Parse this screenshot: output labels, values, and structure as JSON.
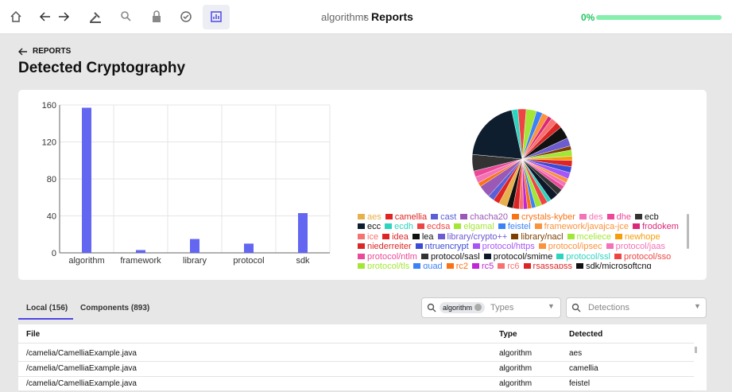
{
  "toolbar": {
    "breadcrumb": "algorithms",
    "current": "Reports",
    "progress": {
      "value": 0,
      "label": "0%"
    }
  },
  "header": {
    "back": "REPORTS",
    "title": "Detected Cryptography"
  },
  "chart_data": [
    {
      "type": "bar",
      "categories": [
        "algorithm",
        "framework",
        "library",
        "protocol",
        "sdk"
      ],
      "values": [
        157,
        3,
        15,
        10,
        43
      ],
      "color": "#6366f1",
      "ylim": [
        0,
        160
      ],
      "yticks": [
        0,
        40,
        80,
        120,
        160
      ],
      "grid": true
    },
    {
      "type": "pie",
      "categories": [
        "aes",
        "camellia",
        "cast",
        "chacha20",
        "crystals-kyber",
        "des",
        "dhe",
        "ecb",
        "ecc",
        "ecdh",
        "ecdsa",
        "elgamal",
        "feistel",
        "framework/javajca-jce",
        "frodokem",
        "ice",
        "idea",
        "lea",
        "library/crypto++",
        "library/nacl",
        "mceliece",
        "newhope",
        "niederreiter",
        "ntruencrypt",
        "protocol/https",
        "protocol/ipsec",
        "protocol/jaas",
        "protocol/ntlm",
        "protocol/sasl",
        "protocol/smime",
        "protocol/ssl",
        "protocol/sso",
        "protocol/tls",
        "quad",
        "rc2",
        "rc5",
        "rc6",
        "rsassapss",
        "sdk/microsoftcng"
      ],
      "values": [
        4,
        3,
        3,
        6,
        2,
        3,
        3,
        8,
        30,
        3,
        4,
        5,
        3,
        3,
        2,
        3,
        3,
        6,
        4,
        2,
        3,
        2,
        3,
        3,
        3,
        2,
        2,
        2,
        3,
        4,
        2,
        3,
        3,
        2,
        2,
        2,
        2,
        3,
        3
      ],
      "colors": [
        "#e8b04a",
        "#e02424",
        "#5a5fd6",
        "#9b59b6",
        "#f97316",
        "#f472b6",
        "#ec4899",
        "#333333",
        "#0f1e2e",
        "#2dd4bf",
        "#ef4444",
        "#a3e635",
        "#3b82f6",
        "#fb923c",
        "#db2777",
        "#f87171",
        "#dc2626",
        "#111111",
        "#6d5bd0",
        "#7c3f00",
        "#a3e635",
        "#f59e0b",
        "#dc2626",
        "#3b4bd6",
        "#a855f7",
        "#fb923c",
        "#f472b6",
        "#ec4899",
        "#333333",
        "#0f172a",
        "#2dd4bf",
        "#ef4444",
        "#a3e635",
        "#3b82f6",
        "#f97316",
        "#c026d3",
        "#f87171",
        "#dc2626",
        "#111111"
      ]
    }
  ],
  "tabs": [
    "Local (156)",
    "Components (893)"
  ],
  "filters": {
    "chip": "algorithm",
    "types": "Types",
    "detections": "Detections"
  },
  "table": {
    "headers": [
      "File",
      "Type",
      "Detected"
    ],
    "rows": [
      [
        "/camelia/CamelliaExample.java",
        "algorithm",
        "aes"
      ],
      [
        "/camelia/CamelliaExample.java",
        "algorithm",
        "camellia"
      ],
      [
        "/camelia/CamelliaExample.java",
        "algorithm",
        "feistel"
      ]
    ]
  }
}
